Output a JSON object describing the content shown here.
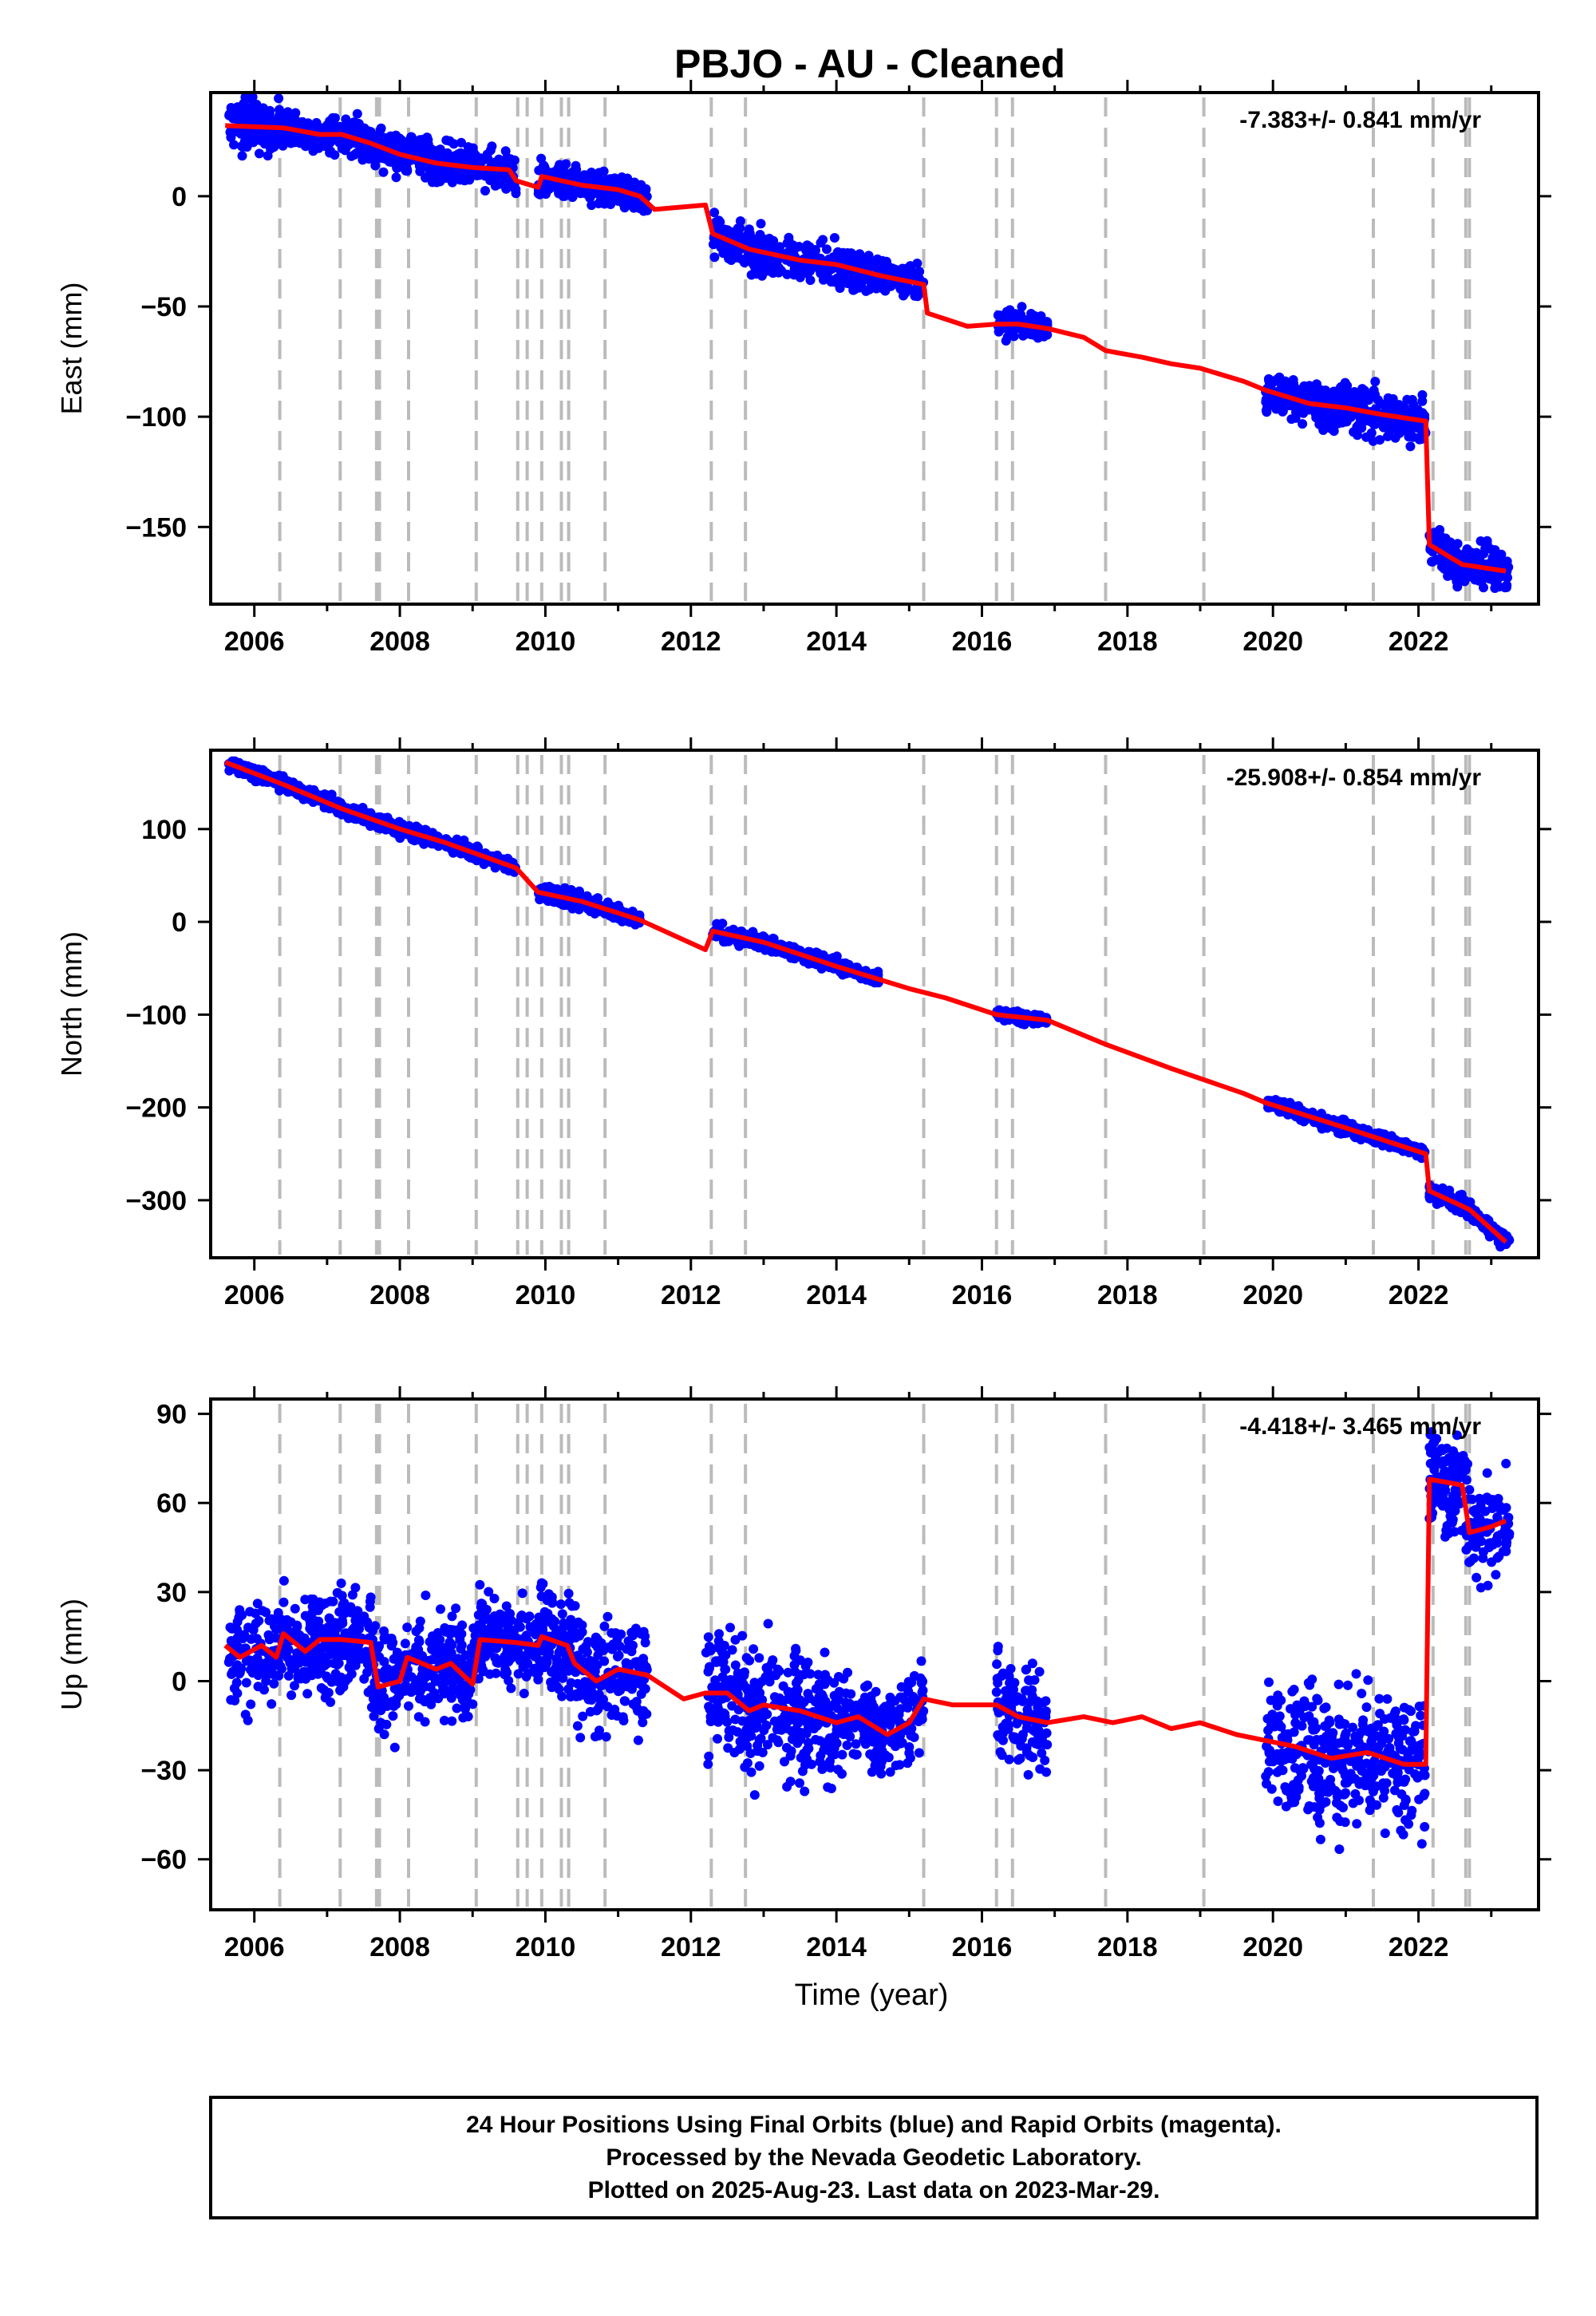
{
  "title": "PBJO  - AU - Cleaned",
  "xlabel": "Time (year)",
  "colors": {
    "final": "#0000ff",
    "model": "#ff0000",
    "breaks": "#bbbbbb",
    "rapid": "#ff00ff"
  },
  "chart_data": [
    {
      "type": "scatter",
      "name": "East",
      "ylabel": "East (mm)",
      "rate": "-7.383+/- 0.841 mm/yr",
      "xlim": [
        2005.4,
        2023.65
      ],
      "ylim": [
        -185,
        47
      ],
      "yticks": [
        0,
        -50,
        -100,
        -150
      ],
      "yticks_label": [
        "0",
        "−50",
        "−100",
        "−150"
      ],
      "xticks": [
        2006,
        2008,
        2010,
        2012,
        2014,
        2016,
        2018,
        2020,
        2022
      ],
      "grid": false,
      "model_line": [
        [
          2005.6,
          32
        ],
        [
          2006.4,
          31
        ],
        [
          2006.9,
          28
        ],
        [
          2007.2,
          28
        ],
        [
          2007.6,
          24
        ],
        [
          2008.0,
          19
        ],
        [
          2008.5,
          15
        ],
        [
          2009.0,
          13
        ],
        [
          2009.5,
          12
        ],
        [
          2009.6,
          7
        ],
        [
          2009.9,
          4
        ],
        [
          2009.95,
          9
        ],
        [
          2010.5,
          5
        ],
        [
          2011.0,
          3
        ],
        [
          2011.3,
          0
        ],
        [
          2011.5,
          -6
        ],
        [
          2012.2,
          -4
        ],
        [
          2012.3,
          -17
        ],
        [
          2012.8,
          -24
        ],
        [
          2013.5,
          -29
        ],
        [
          2014.0,
          -31
        ],
        [
          2014.6,
          -36
        ],
        [
          2015.2,
          -40
        ],
        [
          2015.25,
          -53
        ],
        [
          2015.8,
          -59
        ],
        [
          2016.2,
          -58
        ],
        [
          2016.5,
          -58
        ],
        [
          2016.9,
          -60
        ],
        [
          2017.4,
          -64
        ],
        [
          2017.7,
          -70
        ],
        [
          2018.2,
          -73
        ],
        [
          2018.6,
          -76
        ],
        [
          2019.0,
          -78
        ],
        [
          2019.6,
          -84
        ],
        [
          2019.9,
          -88
        ],
        [
          2020.5,
          -94
        ],
        [
          2021.0,
          -96
        ],
        [
          2021.5,
          -99
        ],
        [
          2022.1,
          -102
        ],
        [
          2022.15,
          -158
        ],
        [
          2022.6,
          -167
        ],
        [
          2023.2,
          -170
        ]
      ],
      "point_bands": [
        [
          2005.65,
          2006.35,
          28,
          8
        ],
        [
          2006.35,
          2007.1,
          30,
          5
        ],
        [
          2007.1,
          2008.0,
          22,
          6
        ],
        [
          2008.0,
          2009.6,
          14,
          6
        ],
        [
          2009.9,
          2011.4,
          4,
          5
        ],
        [
          2012.3,
          2014.6,
          -28,
          6
        ],
        [
          2014.6,
          2015.2,
          -38,
          5
        ],
        [
          2016.2,
          2016.9,
          -58,
          4
        ],
        [
          2019.9,
          2022.1,
          -96,
          7
        ],
        [
          2022.15,
          2023.25,
          -166,
          6
        ]
      ]
    },
    {
      "type": "scatter",
      "name": "North",
      "ylabel": "North (mm)",
      "rate": "-25.908+/- 0.854 mm/yr",
      "xlim": [
        2005.4,
        2023.65
      ],
      "ylim": [
        -362,
        185
      ],
      "yticks": [
        100,
        0,
        -100,
        -200,
        -300
      ],
      "yticks_label": [
        "100",
        "0",
        "−100",
        "−200",
        "−300"
      ],
      "xticks": [
        2006,
        2008,
        2010,
        2012,
        2014,
        2016,
        2018,
        2020,
        2022
      ],
      "grid": false,
      "model_line": [
        [
          2005.6,
          172
        ],
        [
          2006.4,
          148
        ],
        [
          2007.2,
          122
        ],
        [
          2008.0,
          100
        ],
        [
          2008.6,
          86
        ],
        [
          2009.6,
          58
        ],
        [
          2009.9,
          32
        ],
        [
          2010.5,
          22
        ],
        [
          2011.3,
          2
        ],
        [
          2012.2,
          -30
        ],
        [
          2012.3,
          -10
        ],
        [
          2013.0,
          -22
        ],
        [
          2014.0,
          -48
        ],
        [
          2015.0,
          -72
        ],
        [
          2015.5,
          -82
        ],
        [
          2016.2,
          -100
        ],
        [
          2016.9,
          -106
        ],
        [
          2017.7,
          -132
        ],
        [
          2018.6,
          -158
        ],
        [
          2019.6,
          -185
        ],
        [
          2019.9,
          -195
        ],
        [
          2021.0,
          -222
        ],
        [
          2022.1,
          -250
        ],
        [
          2022.15,
          -290
        ],
        [
          2022.7,
          -310
        ],
        [
          2023.2,
          -345
        ]
      ],
      "point_bands": [
        [
          2005.65,
          2009.6,
          0,
          5
        ],
        [
          2009.9,
          2011.3,
          0,
          6
        ],
        [
          2012.3,
          2014.6,
          0,
          5
        ],
        [
          2016.2,
          2016.9,
          0,
          4
        ],
        [
          2019.9,
          2022.1,
          0,
          5
        ],
        [
          2022.15,
          2023.25,
          0,
          6
        ]
      ]
    },
    {
      "type": "scatter",
      "name": "Up",
      "ylabel": "Up (mm)",
      "rate": "-4.418+/- 3.465 mm/yr",
      "xlim": [
        2005.4,
        2023.65
      ],
      "ylim": [
        -77,
        95
      ],
      "yticks": [
        90,
        60,
        30,
        0,
        -30,
        -60
      ],
      "yticks_label": [
        "90",
        "60",
        "30",
        "0",
        "−30",
        "−60"
      ],
      "xticks": [
        2006,
        2008,
        2010,
        2012,
        2014,
        2016,
        2018,
        2020,
        2022
      ],
      "grid": false,
      "model_line": [
        [
          2005.6,
          12
        ],
        [
          2005.8,
          8
        ],
        [
          2006.1,
          12
        ],
        [
          2006.3,
          8
        ],
        [
          2006.4,
          16
        ],
        [
          2006.7,
          10
        ],
        [
          2006.9,
          14
        ],
        [
          2007.2,
          14
        ],
        [
          2007.6,
          13
        ],
        [
          2007.7,
          -2
        ],
        [
          2008.0,
          0
        ],
        [
          2008.1,
          8
        ],
        [
          2008.5,
          4
        ],
        [
          2008.7,
          6
        ],
        [
          2009.0,
          -1
        ],
        [
          2009.1,
          14
        ],
        [
          2009.6,
          13
        ],
        [
          2009.9,
          12
        ],
        [
          2009.95,
          15
        ],
        [
          2010.3,
          12
        ],
        [
          2010.4,
          6
        ],
        [
          2010.7,
          0
        ],
        [
          2011.0,
          4
        ],
        [
          2011.4,
          2
        ],
        [
          2011.9,
          -6
        ],
        [
          2012.2,
          -4
        ],
        [
          2012.5,
          -4
        ],
        [
          2012.8,
          -10
        ],
        [
          2013.0,
          -8
        ],
        [
          2013.5,
          -10
        ],
        [
          2014.0,
          -14
        ],
        [
          2014.3,
          -12
        ],
        [
          2014.7,
          -18
        ],
        [
          2015.0,
          -14
        ],
        [
          2015.2,
          -6
        ],
        [
          2015.6,
          -8
        ],
        [
          2016.2,
          -8
        ],
        [
          2016.5,
          -12
        ],
        [
          2016.9,
          -14
        ],
        [
          2017.4,
          -12
        ],
        [
          2017.8,
          -14
        ],
        [
          2018.2,
          -12
        ],
        [
          2018.6,
          -16
        ],
        [
          2019.0,
          -14
        ],
        [
          2019.5,
          -18
        ],
        [
          2019.9,
          -20
        ],
        [
          2020.3,
          -22
        ],
        [
          2020.8,
          -26
        ],
        [
          2021.3,
          -24
        ],
        [
          2021.8,
          -28
        ],
        [
          2022.1,
          -28
        ],
        [
          2022.15,
          68
        ],
        [
          2022.6,
          66
        ],
        [
          2022.7,
          50
        ],
        [
          2023.0,
          52
        ],
        [
          2023.2,
          54
        ]
      ],
      "point_bands": [
        [
          2005.65,
          2007.6,
          0,
          12
        ],
        [
          2007.6,
          2009.1,
          0,
          12
        ],
        [
          2009.1,
          2009.9,
          0,
          10
        ],
        [
          2009.9,
          2011.4,
          0,
          13
        ],
        [
          2012.2,
          2014.1,
          0,
          14
        ],
        [
          2014.1,
          2015.2,
          0,
          10
        ],
        [
          2016.2,
          2016.9,
          0,
          13
        ],
        [
          2019.9,
          2022.1,
          0,
          16
        ],
        [
          2022.15,
          2023.25,
          0,
          12
        ]
      ]
    }
  ],
  "break_years": [
    2006.35,
    2007.18,
    2007.68,
    2007.72,
    2008.12,
    2009.05,
    2009.62,
    2009.75,
    2009.95,
    2010.22,
    2010.32,
    2010.82,
    2012.28,
    2012.75,
    2015.2,
    2016.2,
    2016.42,
    2017.7,
    2019.05,
    2021.38,
    2022.2,
    2022.65,
    2022.7
  ],
  "footer": {
    "line1": "24 Hour Positions Using Final Orbits (blue) and Rapid Orbits (magenta).",
    "line2": "Processed by the Nevada Geodetic Laboratory.",
    "line3": "Plotted on 2025-Aug-23. Last data on 2023-Mar-29."
  }
}
